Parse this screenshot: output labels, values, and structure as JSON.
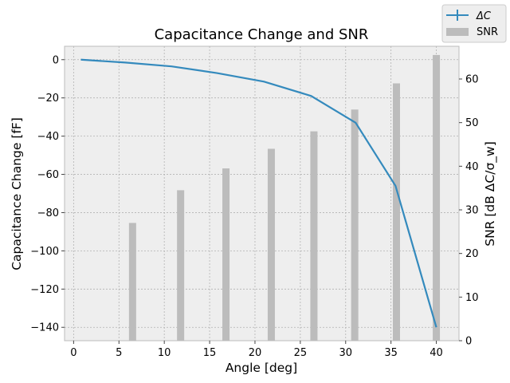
{
  "chart_data": {
    "type": "line+bar",
    "title": "Capacitance Change and SNR",
    "xlabel": "Angle [deg]",
    "ylabel_left": "Capacitance Change [fF]",
    "ylabel_right": "SNR [dB ΔC/σ_w]",
    "xlim": [
      -1,
      42.5
    ],
    "ylim_left": [
      -147,
      7
    ],
    "ylim_right": [
      0,
      67.5
    ],
    "x_ticks": [
      0,
      5,
      10,
      15,
      20,
      25,
      30,
      35,
      40
    ],
    "y_ticks_left": [
      0,
      -20,
      -40,
      -60,
      -80,
      -100,
      -120,
      -140
    ],
    "y_ticks_right": [
      0,
      10,
      20,
      30,
      40,
      50,
      60
    ],
    "grid": true,
    "legend_position": "top-right (outside plot)",
    "series": [
      {
        "name": "ΔC",
        "kind": "line",
        "axis": "left",
        "color": "#348abd",
        "x": [
          0.8,
          5.7,
          10.8,
          15.8,
          21.0,
          26.2,
          31.1,
          35.5,
          40.0
        ],
        "y": [
          0,
          -1.5,
          -3.5,
          -7,
          -11.5,
          -19,
          -33,
          -66,
          -140
        ]
      },
      {
        "name": "SNR",
        "kind": "bar",
        "axis": "right",
        "color": "#bcbcbc",
        "x": [
          6.5,
          11.8,
          16.8,
          21.8,
          26.5,
          31.0,
          35.6,
          40.0
        ],
        "values": [
          27,
          34.5,
          39.5,
          44,
          48,
          53,
          59,
          65.5
        ]
      }
    ]
  },
  "colors": {
    "plot_background": "#eeeeee",
    "grid": "#b2b2b2",
    "line": "#348abd",
    "bar": "#bcbcbc"
  }
}
